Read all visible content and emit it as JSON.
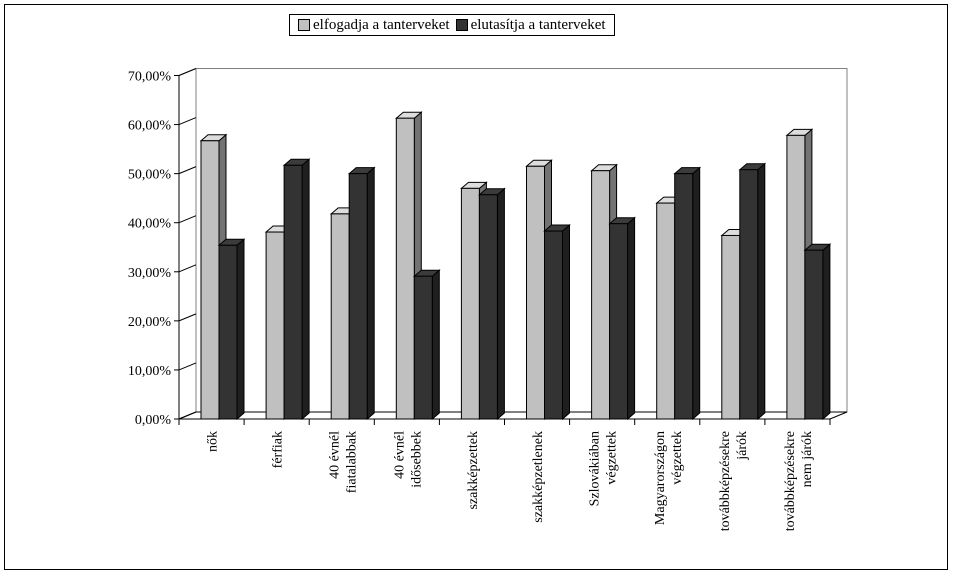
{
  "chart_data": {
    "type": "bar",
    "categories": [
      [
        "nők"
      ],
      [
        "férfiak"
      ],
      [
        "40 évnél",
        "fiatalabbak"
      ],
      [
        "40 évnél",
        "idősebbek"
      ],
      [
        "szakképzettek"
      ],
      [
        "szakképzetlenek"
      ],
      [
        "Szlovákiában",
        "végzettek"
      ],
      [
        "Magyarországon",
        "végzettek"
      ],
      [
        "továbbképzésekre",
        "járók"
      ],
      [
        "továbbképzésekre",
        "nem járók"
      ]
    ],
    "series": [
      {
        "name": "elfogadja a tanterveket",
        "color": "#c0c0c0",
        "values": [
          56.7,
          38.1,
          41.8,
          61.3,
          47.0,
          51.5,
          50.6,
          44.0,
          37.4,
          57.8
        ]
      },
      {
        "name": "elutasítja a tanterveket",
        "color": "#333333",
        "values": [
          35.4,
          51.7,
          50.0,
          29.1,
          45.7,
          38.3,
          39.8,
          50.0,
          50.8,
          34.4
        ]
      }
    ],
    "yticks": [
      "0,00%",
      "10,00%",
      "20,00%",
      "30,00%",
      "40,00%",
      "50,00%",
      "60,00%",
      "70,00%"
    ],
    "ylim": [
      0,
      70
    ],
    "grid": false,
    "legend_position": "top-center",
    "title": "",
    "xlabel": "",
    "ylabel": ""
  }
}
